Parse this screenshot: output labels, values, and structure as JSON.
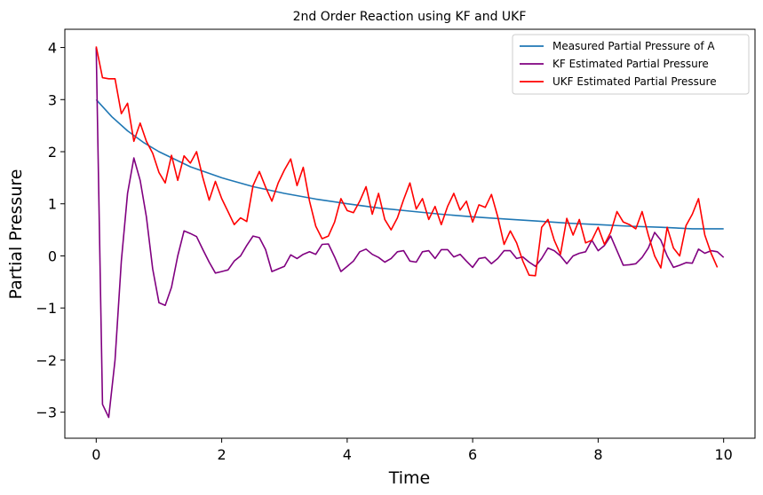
{
  "chart_data": {
    "type": "line",
    "title": "2nd Order Reaction using KF and UKF",
    "xlabel": "Time",
    "ylabel": "Partial Pressure",
    "xlim": [
      -0.5,
      10.5
    ],
    "ylim": [
      -3.5,
      4.35
    ],
    "x_ticks": [
      0,
      2,
      4,
      6,
      8,
      10
    ],
    "x_tick_labels": [
      "0",
      "2",
      "4",
      "6",
      "8",
      "10"
    ],
    "y_ticks": [
      -3,
      -2,
      -1,
      0,
      1,
      2,
      3,
      4
    ],
    "y_tick_labels": [
      "−3",
      "−2",
      "−1",
      "0",
      "1",
      "2",
      "3",
      "4"
    ],
    "grid": false,
    "legend_position": "top-right",
    "series": [
      {
        "name": "Measured Partial Pressure of A",
        "color": "#1f77b4",
        "points": [
          [
            0,
            3.0
          ],
          [
            0.25,
            2.67
          ],
          [
            0.5,
            2.4
          ],
          [
            0.75,
            2.18
          ],
          [
            1,
            2.0
          ],
          [
            1.5,
            1.71
          ],
          [
            2,
            1.5
          ],
          [
            2.5,
            1.33
          ],
          [
            3,
            1.2
          ],
          [
            3.5,
            1.09
          ],
          [
            4,
            1.0
          ],
          [
            4.5,
            0.92
          ],
          [
            5,
            0.86
          ],
          [
            5.5,
            0.8
          ],
          [
            6,
            0.75
          ],
          [
            6.5,
            0.71
          ],
          [
            7,
            0.67
          ],
          [
            7.5,
            0.63
          ],
          [
            8,
            0.6
          ],
          [
            8.5,
            0.57
          ],
          [
            9,
            0.55
          ],
          [
            9.5,
            0.52
          ],
          [
            10,
            0.52
          ]
        ]
      },
      {
        "name": "KF Estimated Partial Pressure",
        "color": "#800080",
        "points": [
          [
            0,
            4.0
          ],
          [
            0.1,
            -2.85
          ],
          [
            0.2,
            -3.1
          ],
          [
            0.3,
            -2.0
          ],
          [
            0.4,
            -0.1
          ],
          [
            0.5,
            1.2
          ],
          [
            0.6,
            1.88
          ],
          [
            0.7,
            1.45
          ],
          [
            0.8,
            0.75
          ],
          [
            0.9,
            -0.25
          ],
          [
            1.0,
            -0.9
          ],
          [
            1.1,
            -0.95
          ],
          [
            1.2,
            -0.6
          ],
          [
            1.3,
            0.0
          ],
          [
            1.4,
            0.48
          ],
          [
            1.5,
            0.43
          ],
          [
            1.6,
            0.37
          ],
          [
            1.7,
            0.12
          ],
          [
            1.8,
            -0.12
          ],
          [
            1.9,
            -0.33
          ],
          [
            2.0,
            -0.3
          ],
          [
            2.1,
            -0.27
          ],
          [
            2.2,
            -0.1
          ],
          [
            2.3,
            0.0
          ],
          [
            2.4,
            0.2
          ],
          [
            2.5,
            0.38
          ],
          [
            2.6,
            0.35
          ],
          [
            2.7,
            0.12
          ],
          [
            2.8,
            -0.3
          ],
          [
            2.9,
            -0.25
          ],
          [
            3.0,
            -0.2
          ],
          [
            3.1,
            0.02
          ],
          [
            3.2,
            -0.05
          ],
          [
            3.3,
            0.03
          ],
          [
            3.4,
            0.08
          ],
          [
            3.5,
            0.03
          ],
          [
            3.6,
            0.22
          ],
          [
            3.7,
            0.23
          ],
          [
            3.8,
            -0.02
          ],
          [
            3.9,
            -0.3
          ],
          [
            4.0,
            -0.2
          ],
          [
            4.1,
            -0.1
          ],
          [
            4.2,
            0.08
          ],
          [
            4.3,
            0.13
          ],
          [
            4.4,
            0.03
          ],
          [
            4.5,
            -0.03
          ],
          [
            4.6,
            -0.12
          ],
          [
            4.7,
            -0.05
          ],
          [
            4.8,
            0.08
          ],
          [
            4.9,
            0.1
          ],
          [
            5.0,
            -0.1
          ],
          [
            5.1,
            -0.12
          ],
          [
            5.2,
            0.08
          ],
          [
            5.3,
            0.1
          ],
          [
            5.4,
            -0.05
          ],
          [
            5.5,
            0.12
          ],
          [
            5.6,
            0.12
          ],
          [
            5.7,
            -0.02
          ],
          [
            5.8,
            0.03
          ],
          [
            5.9,
            -0.1
          ],
          [
            6.0,
            -0.22
          ],
          [
            6.1,
            -0.05
          ],
          [
            6.2,
            -0.03
          ],
          [
            6.3,
            -0.15
          ],
          [
            6.4,
            -0.05
          ],
          [
            6.5,
            0.1
          ],
          [
            6.6,
            0.1
          ],
          [
            6.7,
            -0.05
          ],
          [
            6.8,
            -0.02
          ],
          [
            6.9,
            -0.12
          ],
          [
            7.0,
            -0.2
          ],
          [
            7.1,
            -0.05
          ],
          [
            7.2,
            0.15
          ],
          [
            7.3,
            0.1
          ],
          [
            7.4,
            0.0
          ],
          [
            7.5,
            -0.15
          ],
          [
            7.6,
            0.0
          ],
          [
            7.7,
            0.05
          ],
          [
            7.8,
            0.08
          ],
          [
            7.9,
            0.3
          ],
          [
            8.0,
            0.1
          ],
          [
            8.1,
            0.2
          ],
          [
            8.2,
            0.38
          ],
          [
            8.3,
            0.1
          ],
          [
            8.4,
            -0.18
          ],
          [
            8.5,
            -0.17
          ],
          [
            8.6,
            -0.15
          ],
          [
            8.7,
            -0.03
          ],
          [
            8.8,
            0.15
          ],
          [
            8.9,
            0.45
          ],
          [
            9.0,
            0.3
          ],
          [
            9.1,
            0.0
          ],
          [
            9.2,
            -0.22
          ],
          [
            9.3,
            -0.18
          ],
          [
            9.4,
            -0.13
          ],
          [
            9.5,
            -0.14
          ],
          [
            9.6,
            0.13
          ],
          [
            9.7,
            0.05
          ],
          [
            9.8,
            0.1
          ],
          [
            9.9,
            0.08
          ],
          [
            10.0,
            -0.03
          ]
        ]
      },
      {
        "name": "UKF Estimated Partial Pressure",
        "color": "#ff0000",
        "points": [
          [
            0,
            4.02
          ],
          [
            0.1,
            3.42
          ],
          [
            0.2,
            3.4
          ],
          [
            0.3,
            3.4
          ],
          [
            0.4,
            2.73
          ],
          [
            0.5,
            2.93
          ],
          [
            0.6,
            2.2
          ],
          [
            0.7,
            2.55
          ],
          [
            0.8,
            2.2
          ],
          [
            0.9,
            1.97
          ],
          [
            1.0,
            1.6
          ],
          [
            1.1,
            1.4
          ],
          [
            1.2,
            1.93
          ],
          [
            1.3,
            1.45
          ],
          [
            1.4,
            1.92
          ],
          [
            1.5,
            1.78
          ],
          [
            1.6,
            2.0
          ],
          [
            1.7,
            1.5
          ],
          [
            1.8,
            1.07
          ],
          [
            1.9,
            1.43
          ],
          [
            2.0,
            1.1
          ],
          [
            2.1,
            0.85
          ],
          [
            2.2,
            0.6
          ],
          [
            2.3,
            0.73
          ],
          [
            2.4,
            0.66
          ],
          [
            2.5,
            1.35
          ],
          [
            2.6,
            1.62
          ],
          [
            2.7,
            1.32
          ],
          [
            2.8,
            1.05
          ],
          [
            2.9,
            1.4
          ],
          [
            3.0,
            1.65
          ],
          [
            3.1,
            1.86
          ],
          [
            3.2,
            1.35
          ],
          [
            3.3,
            1.7
          ],
          [
            3.4,
            1.05
          ],
          [
            3.5,
            0.57
          ],
          [
            3.6,
            0.33
          ],
          [
            3.7,
            0.38
          ],
          [
            3.8,
            0.65
          ],
          [
            3.9,
            1.1
          ],
          [
            4.0,
            0.87
          ],
          [
            4.1,
            0.83
          ],
          [
            4.2,
            1.05
          ],
          [
            4.3,
            1.33
          ],
          [
            4.4,
            0.8
          ],
          [
            4.5,
            1.2
          ],
          [
            4.6,
            0.7
          ],
          [
            4.7,
            0.5
          ],
          [
            4.8,
            0.73
          ],
          [
            4.9,
            1.08
          ],
          [
            5.0,
            1.4
          ],
          [
            5.1,
            0.9
          ],
          [
            5.2,
            1.1
          ],
          [
            5.3,
            0.7
          ],
          [
            5.4,
            0.95
          ],
          [
            5.5,
            0.6
          ],
          [
            5.6,
            0.95
          ],
          [
            5.7,
            1.2
          ],
          [
            5.8,
            0.88
          ],
          [
            5.9,
            1.05
          ],
          [
            6.0,
            0.65
          ],
          [
            6.1,
            0.98
          ],
          [
            6.2,
            0.93
          ],
          [
            6.3,
            1.18
          ],
          [
            6.4,
            0.75
          ],
          [
            6.5,
            0.22
          ],
          [
            6.6,
            0.48
          ],
          [
            6.7,
            0.25
          ],
          [
            6.8,
            -0.1
          ],
          [
            6.9,
            -0.37
          ],
          [
            7.0,
            -0.38
          ],
          [
            7.1,
            0.55
          ],
          [
            7.2,
            0.7
          ],
          [
            7.3,
            0.3
          ],
          [
            7.4,
            0.03
          ],
          [
            7.5,
            0.72
          ],
          [
            7.6,
            0.4
          ],
          [
            7.7,
            0.7
          ],
          [
            7.8,
            0.25
          ],
          [
            7.9,
            0.3
          ],
          [
            8.0,
            0.55
          ],
          [
            8.1,
            0.22
          ],
          [
            8.2,
            0.45
          ],
          [
            8.3,
            0.85
          ],
          [
            8.4,
            0.65
          ],
          [
            8.5,
            0.6
          ],
          [
            8.6,
            0.52
          ],
          [
            8.7,
            0.85
          ],
          [
            8.8,
            0.4
          ],
          [
            8.9,
            0.0
          ],
          [
            9.0,
            -0.23
          ],
          [
            9.1,
            0.55
          ],
          [
            9.2,
            0.15
          ],
          [
            9.3,
            0.0
          ],
          [
            9.4,
            0.58
          ],
          [
            9.5,
            0.8
          ],
          [
            9.6,
            1.1
          ],
          [
            9.7,
            0.4
          ],
          [
            9.8,
            0.05
          ],
          [
            9.9,
            -0.22
          ]
        ]
      }
    ]
  }
}
